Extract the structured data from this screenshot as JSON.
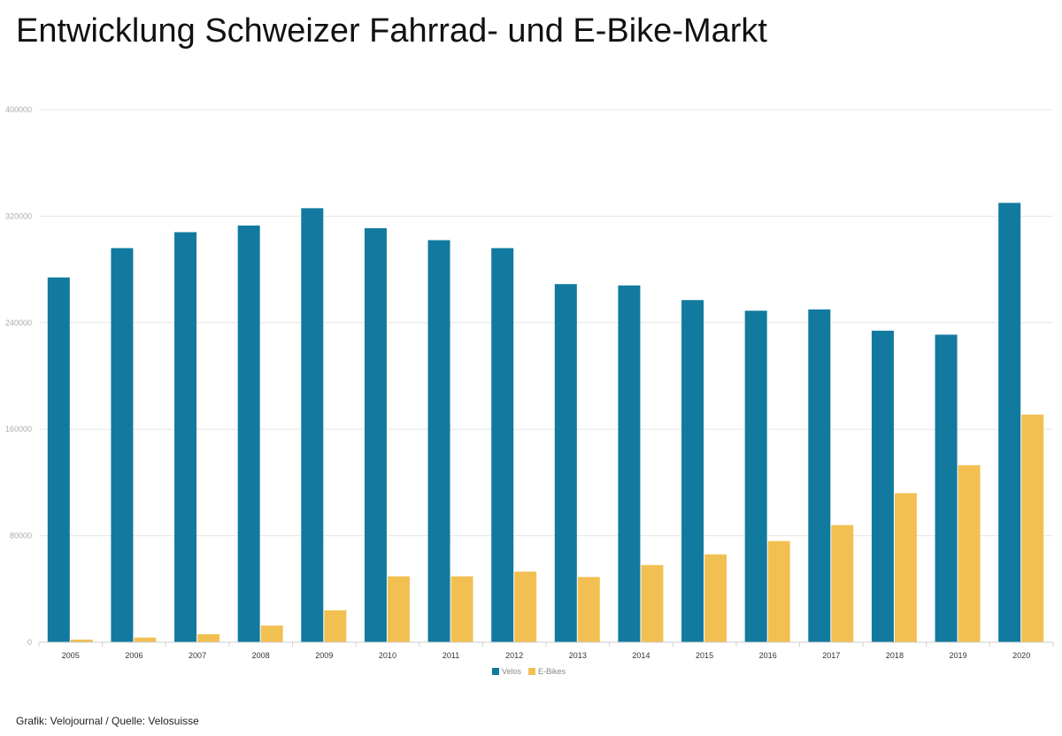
{
  "title": "Entwicklung Schweizer Fahrrad- und E-Bike-Markt",
  "source": "Grafik: Velojournal / Quelle: Velosuisse",
  "colors": {
    "velos": "#117a9e",
    "ebikes": "#f2c052",
    "grid": "#e6e6e6"
  },
  "chart_data": {
    "type": "bar",
    "title": "Entwicklung Schweizer Fahrrad- und E-Bike-Markt",
    "xlabel": "",
    "ylabel": "",
    "ylim": [
      0,
      400000
    ],
    "yticks": [
      0,
      80000,
      160000,
      240000,
      320000,
      400000
    ],
    "ytick_labels": [
      "0",
      "80000",
      "160000",
      "240000",
      "320000",
      "400000"
    ],
    "categories": [
      "2005",
      "2006",
      "2007",
      "2008",
      "2009",
      "2010",
      "2011",
      "2012",
      "2013",
      "2014",
      "2015",
      "2016",
      "2017",
      "2018",
      "2019",
      "2020"
    ],
    "series": [
      {
        "name": "Velos",
        "values": [
          274000,
          296000,
          308000,
          313000,
          326000,
          311000,
          302000,
          296000,
          269000,
          268000,
          257000,
          249000,
          250000,
          234000,
          231000,
          330000
        ]
      },
      {
        "name": "E-Bikes",
        "values": [
          2000,
          3500,
          6000,
          12500,
          24000,
          49500,
          49500,
          53000,
          49000,
          58000,
          66000,
          76000,
          88000,
          112000,
          133000,
          171000
        ]
      }
    ],
    "legend": "bottom-center",
    "grid": true
  }
}
